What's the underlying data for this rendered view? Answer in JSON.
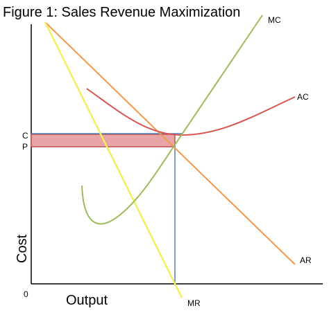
{
  "title": "Figure 1: Sales Revenue Maximization",
  "axes": {
    "x": "Output",
    "y": "Cost",
    "origin": "0"
  },
  "levels": {
    "c": "C",
    "p": "P"
  },
  "curves": {
    "mc": "MC",
    "ac": "AC",
    "ar": "AR",
    "mr": "MR"
  }
}
